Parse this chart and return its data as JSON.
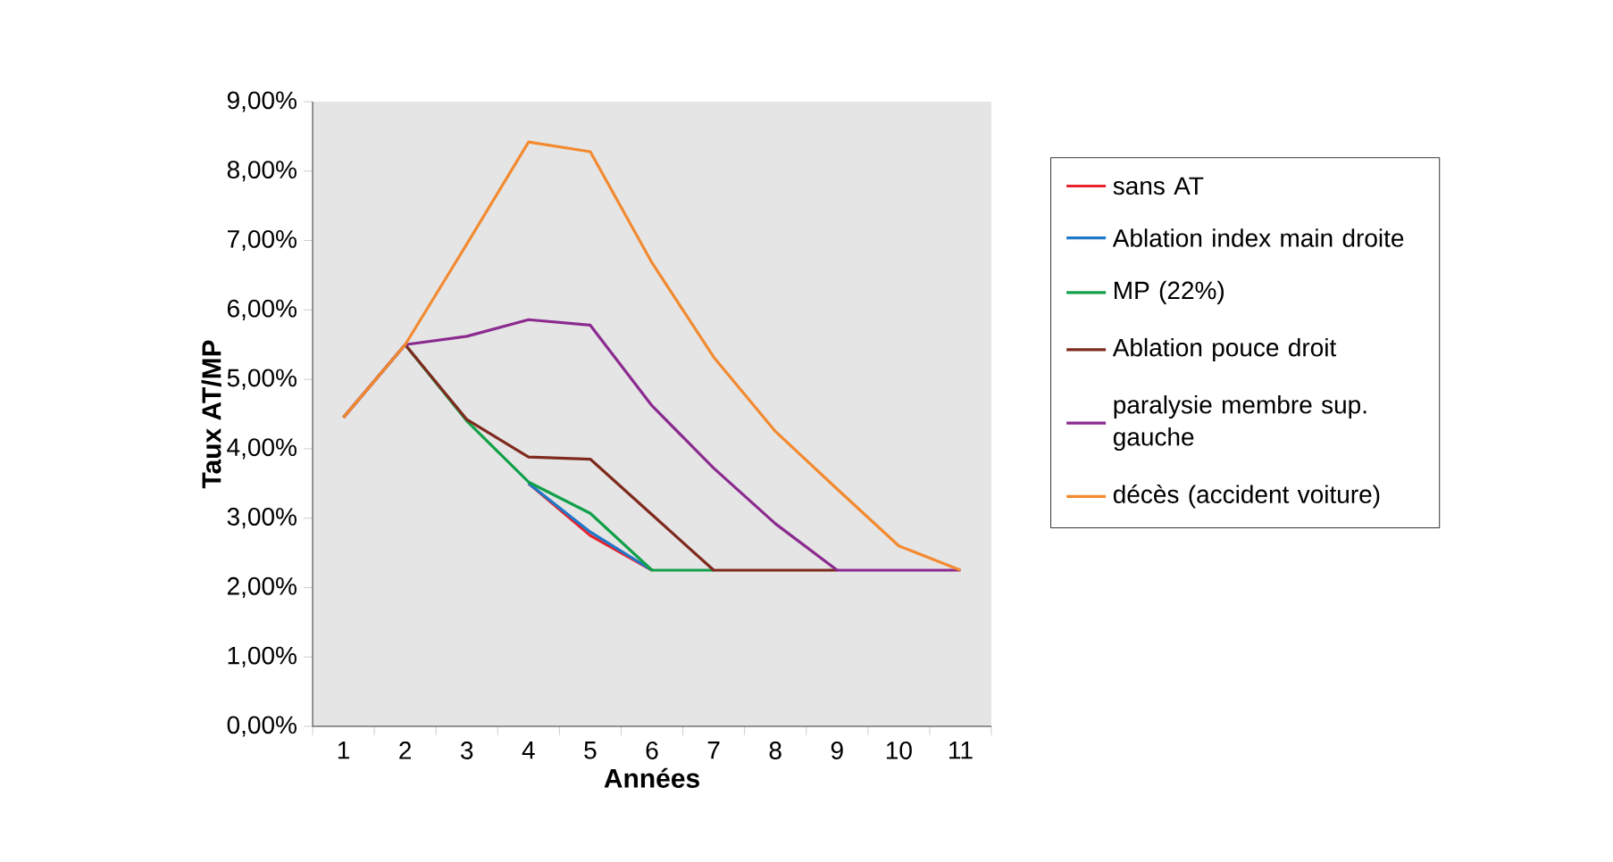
{
  "chart_data": {
    "type": "line",
    "xlabel": "Années",
    "ylabel": "Taux AT/MP",
    "categories": [
      "1",
      "2",
      "3",
      "4",
      "5",
      "6",
      "7",
      "8",
      "9",
      "10",
      "11"
    ],
    "ylim": [
      0,
      9
    ],
    "yticks": [
      {
        "value": 0,
        "label": "0,00%"
      },
      {
        "value": 1,
        "label": "1,00%"
      },
      {
        "value": 2,
        "label": "2,00%"
      },
      {
        "value": 3,
        "label": "3,00%"
      },
      {
        "value": 4,
        "label": "4,00%"
      },
      {
        "value": 5,
        "label": "5,00%"
      },
      {
        "value": 6,
        "label": "6,00%"
      },
      {
        "value": 7,
        "label": "7,00%"
      },
      {
        "value": 8,
        "label": "8,00%"
      },
      {
        "value": 9,
        "label": "9,00%"
      }
    ],
    "legend": "right",
    "marker": "none",
    "line_style": "solid",
    "series": [
      {
        "name": "sans AT",
        "color": "#e8212b",
        "values": [
          null,
          null,
          null,
          3.5,
          2.75,
          2.25,
          null,
          null,
          null,
          null,
          null
        ]
      },
      {
        "name": "Ablation index main droite",
        "color": "#1f78c8",
        "values": [
          null,
          null,
          null,
          3.5,
          2.8,
          2.25,
          null,
          null,
          null,
          null,
          null
        ]
      },
      {
        "name": "MP (22%)",
        "color": "#13a04a",
        "values": [
          null,
          5.5,
          4.4,
          3.52,
          3.07,
          2.25,
          2.25,
          null,
          null,
          null,
          null
        ]
      },
      {
        "name": "Ablation pouce droit",
        "color": "#7f2a1e",
        "values": [
          4.45,
          5.5,
          4.42,
          3.88,
          3.85,
          3.05,
          2.25,
          2.25,
          2.25,
          null,
          null
        ]
      },
      {
        "name": "paralysie membre sup. gauche",
        "color": "#8b2a8f",
        "values": [
          4.45,
          5.5,
          5.62,
          5.86,
          5.78,
          4.62,
          3.72,
          2.92,
          2.25,
          2.25,
          2.25
        ]
      },
      {
        "name": "décès (accident voiture)",
        "color": "#f28a30",
        "values": [
          4.45,
          5.5,
          6.95,
          8.42,
          8.28,
          6.68,
          5.32,
          4.25,
          3.42,
          2.6,
          2.25
        ]
      }
    ]
  }
}
